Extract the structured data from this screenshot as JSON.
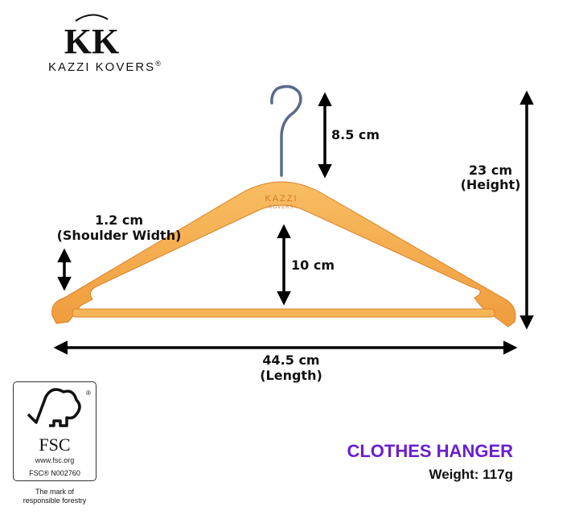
{
  "brand": {
    "name": "KAZZI KOVERS",
    "registered": "®",
    "monogram": "KK",
    "hanger_engraving": [
      "KAZZI",
      "KOVERS"
    ]
  },
  "dimensions": {
    "hook": "8.5 cm",
    "height": {
      "value": "23 cm",
      "label": "(Height)"
    },
    "shoulder": {
      "value": "1.2 cm",
      "label": "(Shoulder Width)"
    },
    "inner": "10 cm",
    "length": {
      "value": "44.5 cm",
      "label": "(Length)"
    }
  },
  "product": {
    "title": "CLOTHES HANGER",
    "weight": "Weight: 117g"
  },
  "fsc": {
    "logo": "FSC",
    "url": "www.fsc.org",
    "license": "FSC® N002760",
    "tagline_1": "The mark of",
    "tagline_2": "responsible forestry"
  },
  "colors": {
    "title": "#6a1fd0",
    "wood": "#f5a94a",
    "arrow": "#000000"
  }
}
